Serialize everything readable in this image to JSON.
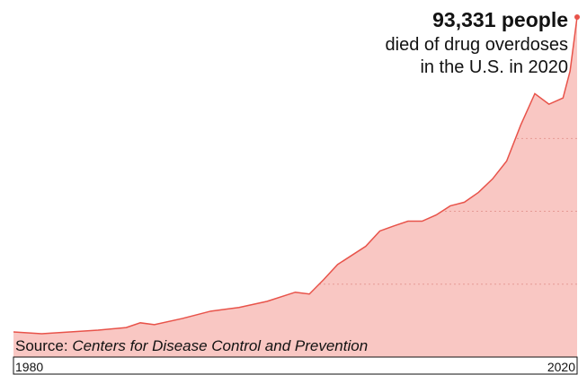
{
  "chart_data": {
    "type": "area",
    "x": [
      1980,
      1982,
      1984,
      1986,
      1988,
      1989,
      1990,
      1992,
      1994,
      1996,
      1998,
      2000,
      2001,
      2002,
      2003,
      2004,
      2005,
      2006,
      2007,
      2008,
      2009,
      2010,
      2011,
      2012,
      2013,
      2014,
      2015,
      2016,
      2017,
      2018,
      2019,
      2019.5,
      2020
    ],
    "values": [
      6900,
      6400,
      6900,
      7400,
      8100,
      9400,
      8900,
      10600,
      12600,
      13600,
      15300,
      17800,
      17300,
      21200,
      25400,
      27900,
      30400,
      34600,
      36000,
      37300,
      37300,
      39000,
      41500,
      42500,
      45200,
      48900,
      53800,
      63700,
      72300,
      69400,
      71100,
      78500,
      93331
    ],
    "value_labels": [
      null,
      null,
      null,
      null,
      null,
      null,
      null,
      null,
      null,
      null,
      null,
      null,
      null,
      null,
      null,
      null,
      null,
      null,
      null,
      null,
      null,
      null,
      null,
      null,
      null,
      null,
      null,
      null,
      null,
      null,
      null,
      null,
      "93,331 people"
    ],
    "annotation": [
      "died of drug overdoses",
      "in the U.S. in 2020"
    ],
    "source_label": "Source:",
    "source": "Centers for Disease Control and Prevention",
    "color": "#e8534a",
    "fill": "#f9c7c3",
    "xlim": [
      1980,
      2020
    ],
    "xticks": [
      1980,
      2020
    ],
    "ylim": [
      0,
      98000
    ],
    "yticks": [
      20000,
      40000,
      60000
    ],
    "grid": true
  }
}
